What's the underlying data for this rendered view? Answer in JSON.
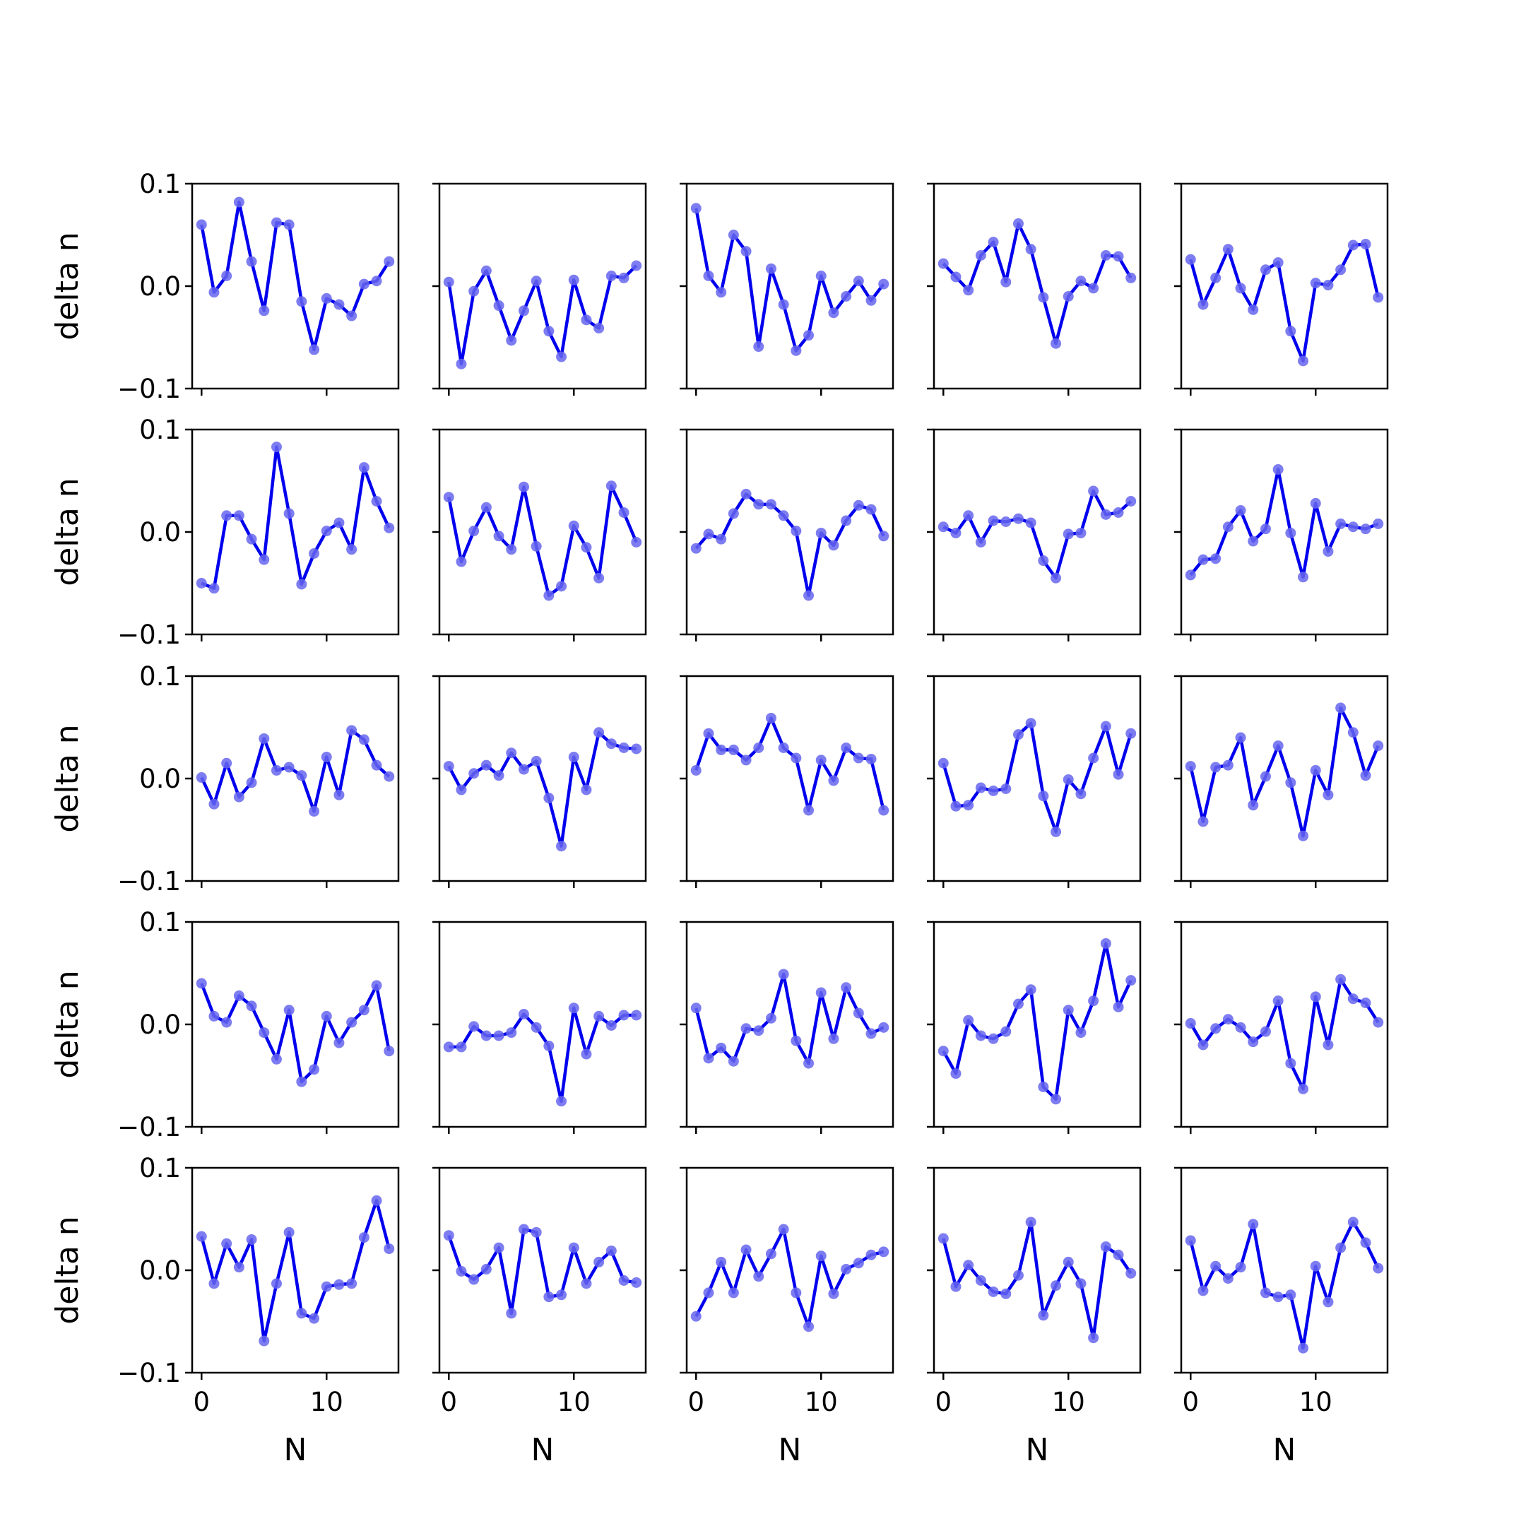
{
  "chart_data": {
    "type": "line",
    "layout": "5x5 grid of small multiples",
    "xlabel": "N",
    "ylabel": "delta n",
    "xlim": [
      -0.75,
      15.75
    ],
    "ylim": [
      -0.1,
      0.1
    ],
    "x_ticks": [
      0,
      10
    ],
    "x_tick_labels": [
      "0",
      "10"
    ],
    "y_ticks": [
      0.1,
      0.0,
      -0.1
    ],
    "y_tick_labels": [
      "0.1",
      "0.0",
      "−0.1"
    ],
    "x": [
      0,
      1,
      2,
      3,
      4,
      5,
      6,
      7,
      8,
      9,
      10,
      11,
      12,
      13,
      14,
      15
    ],
    "line_color": "#0000ee",
    "marker_color": "#6666ee",
    "panels": [
      [
        [
          0.06,
          -0.006,
          0.01,
          0.082,
          0.024,
          -0.024,
          0.062,
          0.06,
          -0.015,
          -0.062,
          -0.012,
          -0.018,
          -0.029,
          0.002,
          0.005,
          0.024
        ],
        [
          0.004,
          -0.076,
          -0.005,
          0.015,
          -0.019,
          -0.053,
          -0.024,
          0.005,
          -0.044,
          -0.069,
          0.006,
          -0.033,
          -0.041,
          0.01,
          0.008,
          0.02
        ],
        [
          0.076,
          0.01,
          -0.006,
          0.05,
          0.034,
          -0.059,
          0.017,
          -0.018,
          -0.063,
          -0.048,
          0.01,
          -0.026,
          -0.01,
          0.005,
          -0.014,
          0.002
        ],
        [
          0.022,
          0.009,
          -0.004,
          0.03,
          0.043,
          0.004,
          0.061,
          0.036,
          -0.011,
          -0.056,
          -0.01,
          0.005,
          -0.002,
          0.03,
          0.029,
          0.008
        ],
        [
          0.026,
          -0.018,
          0.008,
          0.036,
          -0.002,
          -0.023,
          0.016,
          0.023,
          -0.044,
          -0.073,
          0.003,
          0.001,
          0.016,
          0.04,
          0.041,
          -0.011
        ]
      ],
      [
        [
          -0.05,
          -0.055,
          0.016,
          0.016,
          -0.007,
          -0.027,
          0.083,
          0.018,
          -0.051,
          -0.021,
          0.001,
          0.009,
          -0.017,
          0.063,
          0.03,
          0.004
        ],
        [
          0.034,
          -0.029,
          0.001,
          0.024,
          -0.004,
          -0.017,
          0.044,
          -0.014,
          -0.062,
          -0.053,
          0.006,
          -0.015,
          -0.045,
          0.045,
          0.019,
          -0.01
        ],
        [
          -0.016,
          -0.002,
          -0.007,
          0.018,
          0.037,
          0.027,
          0.027,
          0.016,
          0.001,
          -0.062,
          -0.001,
          -0.013,
          0.011,
          0.026,
          0.022,
          -0.004
        ],
        [
          0.005,
          -0.001,
          0.016,
          -0.01,
          0.011,
          0.01,
          0.013,
          0.009,
          -0.028,
          -0.045,
          -0.002,
          -0.001,
          0.04,
          0.017,
          0.019,
          0.03
        ],
        [
          -0.042,
          -0.027,
          -0.026,
          0.005,
          0.021,
          -0.009,
          0.003,
          0.061,
          -0.001,
          -0.044,
          0.028,
          -0.019,
          0.008,
          0.005,
          0.003,
          0.008
        ]
      ],
      [
        [
          0.001,
          -0.025,
          0.015,
          -0.018,
          -0.004,
          0.039,
          0.008,
          0.011,
          0.003,
          -0.032,
          0.021,
          -0.016,
          0.047,
          0.038,
          0.013,
          0.002
        ],
        [
          0.012,
          -0.011,
          0.005,
          0.013,
          0.003,
          0.025,
          0.009,
          0.017,
          -0.019,
          -0.066,
          0.021,
          -0.011,
          0.045,
          0.034,
          0.03,
          0.029
        ],
        [
          0.008,
          0.044,
          0.028,
          0.028,
          0.018,
          0.03,
          0.059,
          0.03,
          0.02,
          -0.031,
          0.018,
          -0.002,
          0.03,
          0.02,
          0.019,
          -0.031
        ],
        [
          0.015,
          -0.027,
          -0.026,
          -0.009,
          -0.012,
          -0.01,
          0.043,
          0.054,
          -0.017,
          -0.052,
          -0.001,
          -0.015,
          0.02,
          0.051,
          0.004,
          0.044
        ],
        [
          0.012,
          -0.042,
          0.011,
          0.013,
          0.04,
          -0.026,
          0.002,
          0.032,
          -0.004,
          -0.056,
          0.008,
          -0.016,
          0.069,
          0.045,
          0.003,
          0.032
        ]
      ],
      [
        [
          0.04,
          0.008,
          0.002,
          0.028,
          0.018,
          -0.008,
          -0.034,
          0.014,
          -0.056,
          -0.044,
          0.008,
          -0.018,
          0.002,
          0.014,
          0.038,
          -0.026
        ],
        [
          -0.022,
          -0.022,
          -0.002,
          -0.011,
          -0.011,
          -0.008,
          0.01,
          -0.003,
          -0.021,
          -0.075,
          0.016,
          -0.029,
          0.008,
          -0.001,
          0.009,
          0.009
        ],
        [
          0.016,
          -0.033,
          -0.023,
          -0.036,
          -0.004,
          -0.006,
          0.006,
          0.049,
          -0.016,
          -0.038,
          0.031,
          -0.014,
          0.036,
          0.011,
          -0.009,
          -0.003
        ],
        [
          -0.026,
          -0.048,
          0.004,
          -0.011,
          -0.014,
          -0.007,
          0.02,
          0.034,
          -0.061,
          -0.073,
          0.014,
          -0.008,
          0.023,
          0.079,
          0.017,
          0.043
        ],
        [
          0.001,
          -0.02,
          -0.004,
          0.005,
          -0.003,
          -0.017,
          -0.007,
          0.023,
          -0.038,
          -0.063,
          0.027,
          -0.02,
          0.044,
          0.025,
          0.021,
          0.002
        ]
      ],
      [
        [
          0.033,
          -0.013,
          0.026,
          0.003,
          0.03,
          -0.069,
          -0.013,
          0.037,
          -0.042,
          -0.047,
          -0.016,
          -0.014,
          -0.013,
          0.032,
          0.068,
          0.021
        ],
        [
          0.034,
          -0.001,
          -0.009,
          0.001,
          0.022,
          -0.042,
          0.04,
          0.037,
          -0.026,
          -0.024,
          0.022,
          -0.013,
          0.008,
          0.019,
          -0.01,
          -0.012
        ],
        [
          -0.045,
          -0.022,
          0.008,
          -0.022,
          0.02,
          -0.006,
          0.016,
          0.04,
          -0.022,
          -0.055,
          0.014,
          -0.023,
          0.001,
          0.007,
          0.015,
          0.018
        ],
        [
          0.031,
          -0.016,
          0.005,
          -0.01,
          -0.021,
          -0.023,
          -0.005,
          0.047,
          -0.044,
          -0.015,
          0.008,
          -0.013,
          -0.066,
          0.023,
          0.015,
          -0.003
        ],
        [
          0.029,
          -0.02,
          0.004,
          -0.008,
          0.003,
          0.045,
          -0.022,
          -0.026,
          -0.024,
          -0.076,
          0.004,
          -0.031,
          0.022,
          0.047,
          0.027,
          0.002
        ]
      ]
    ]
  }
}
